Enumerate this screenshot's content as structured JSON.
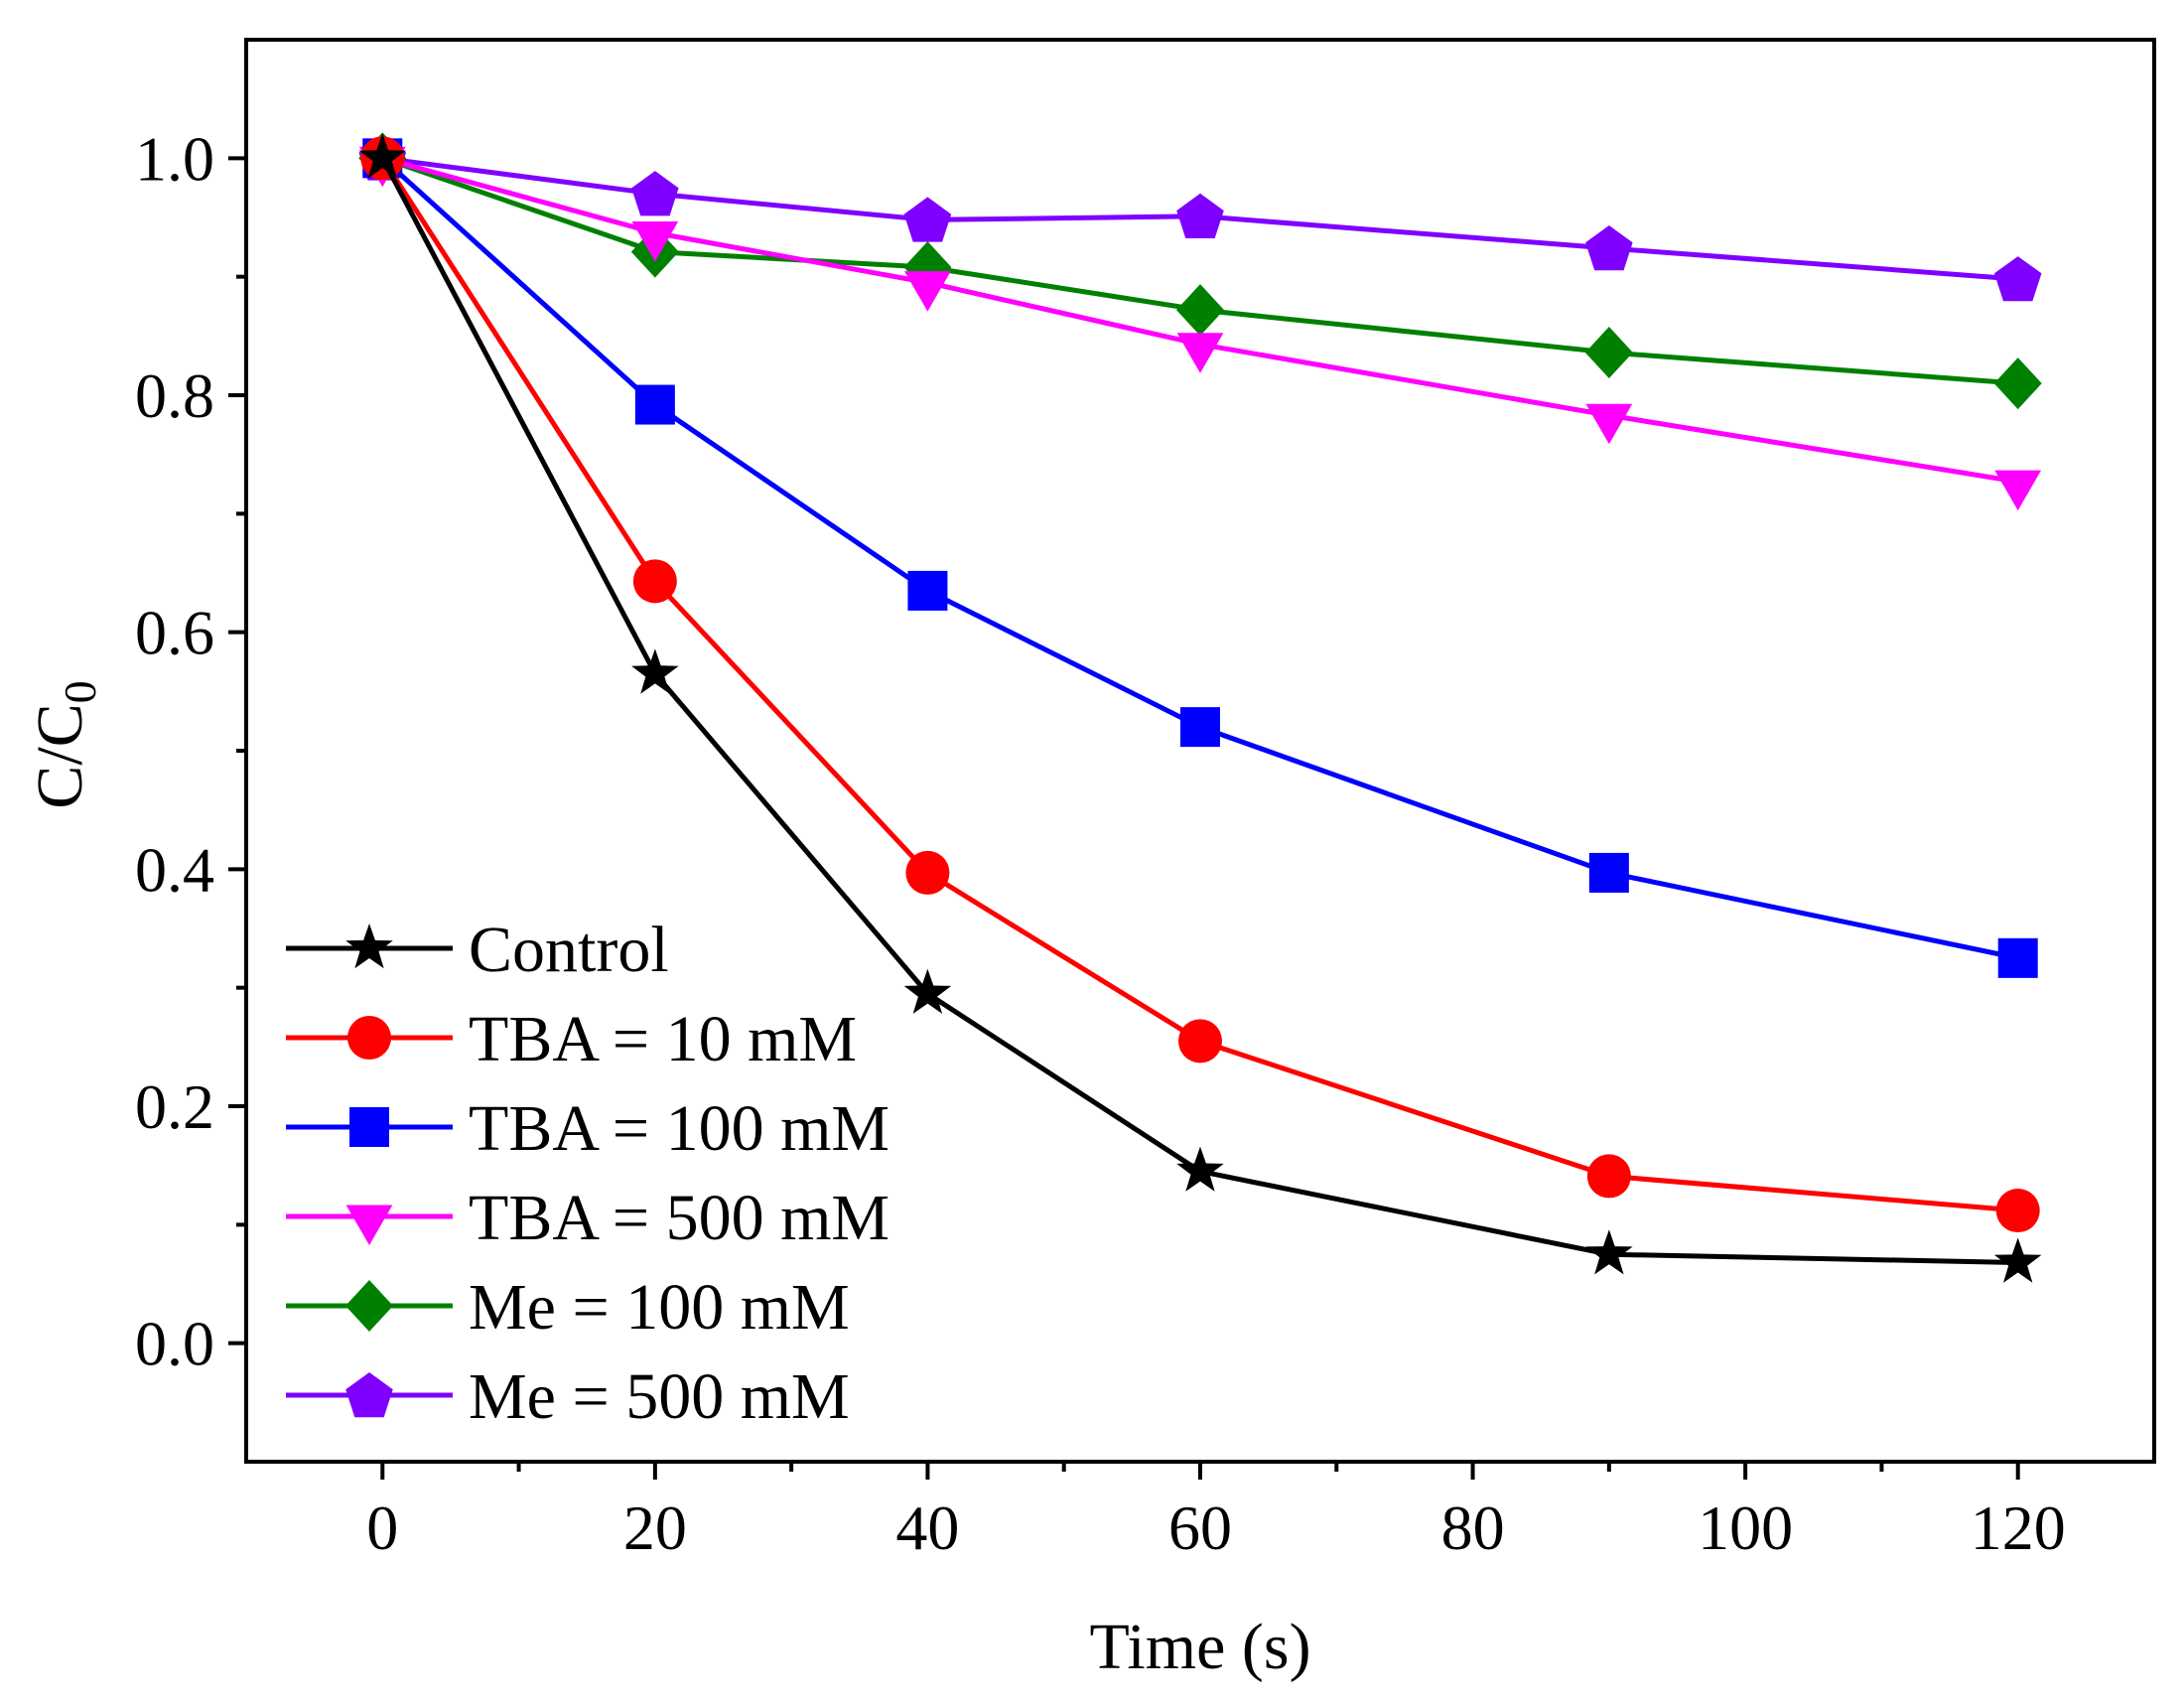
{
  "chart_data": {
    "type": "line",
    "title": "",
    "xlabel": "Time (s)",
    "ylabel_main": "C/C",
    "ylabel_sub": "0",
    "xlim": [
      -10,
      130
    ],
    "ylim": [
      -0.1,
      1.1
    ],
    "xticks": [
      0,
      20,
      40,
      60,
      80,
      100,
      120
    ],
    "xtick_labels": [
      "0",
      "20",
      "40",
      "60",
      "80",
      "100",
      "120"
    ],
    "yticks": [
      0.0,
      0.2,
      0.4,
      0.6,
      0.8,
      1.0
    ],
    "ytick_labels": [
      "0.0",
      "0.2",
      "0.4",
      "0.6",
      "0.8",
      "1.0"
    ],
    "grid": false,
    "legend_position": "bottom-left",
    "x": [
      0,
      20,
      40,
      60,
      90,
      120
    ],
    "series": [
      {
        "name": "Control",
        "color": "#000000",
        "marker": "star",
        "values": [
          1.0,
          0.565,
          0.295,
          0.145,
          0.075,
          0.068
        ]
      },
      {
        "name": "TBA = 10 mM",
        "color": "#ff0000",
        "marker": "circle",
        "values": [
          1.0,
          0.643,
          0.397,
          0.255,
          0.141,
          0.112
        ]
      },
      {
        "name": "TBA = 100 mM",
        "color": "#0000ff",
        "marker": "square",
        "values": [
          1.0,
          0.792,
          0.635,
          0.52,
          0.397,
          0.325
        ]
      },
      {
        "name": "TBA = 500 mM",
        "color": "#ff00ff",
        "marker": "triangle-down",
        "values": [
          1.0,
          0.937,
          0.895,
          0.843,
          0.783,
          0.727
        ]
      },
      {
        "name": "Me = 100 mM",
        "color": "#008000",
        "marker": "diamond",
        "values": [
          1.0,
          0.921,
          0.908,
          0.872,
          0.836,
          0.81
        ]
      },
      {
        "name": "Me = 500 mM",
        "color": "#8000ff",
        "marker": "pentagon",
        "values": [
          1.0,
          0.97,
          0.948,
          0.951,
          0.924,
          0.898
        ]
      }
    ]
  }
}
